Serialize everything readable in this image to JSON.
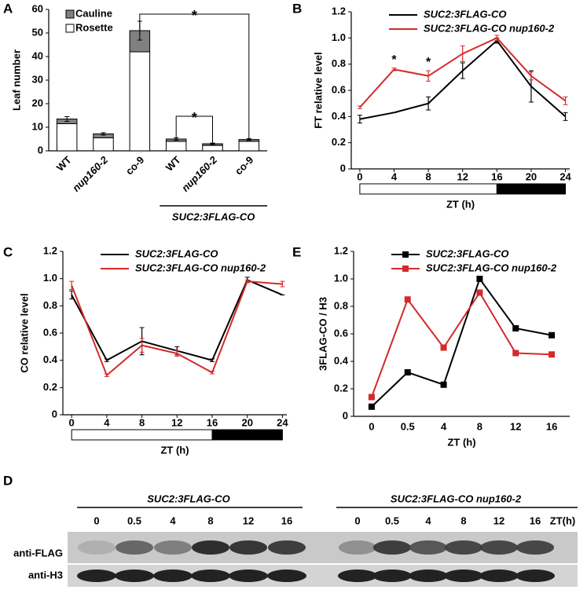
{
  "chart_data": [
    {
      "panel": "A",
      "type": "stacked_bar",
      "y_label": "Leaf number",
      "categories": [
        "WT",
        "nup160-2",
        "co-9",
        "WT",
        "nup160-2",
        "co-9"
      ],
      "series": [
        {
          "name": "Rosette",
          "color": "#ffffff",
          "values": [
            11.5,
            5.5,
            42,
            4,
            2.3,
            4
          ]
        },
        {
          "name": "Cauline",
          "color": "#808080",
          "values": [
            2,
            1.7,
            9,
            1,
            0.7,
            0.8
          ],
          "errors": [
            1,
            0.5,
            4,
            0.5,
            0.3,
            0.4
          ]
        }
      ],
      "ylim": [
        0,
        60
      ],
      "yticks": [
        0,
        10,
        20,
        30,
        40,
        50,
        60
      ],
      "group_label": "SUC2:3FLAG-CO",
      "annotations": [
        "*",
        "*"
      ]
    },
    {
      "panel": "B",
      "type": "line",
      "y_label": "FT relative level",
      "x_label": "ZT (h)",
      "x": [
        0,
        4,
        8,
        12,
        16,
        20,
        24
      ],
      "xlim": [
        -1,
        24.5
      ],
      "xticks": [
        0,
        4,
        8,
        12,
        16,
        20,
        24
      ],
      "light_period": [
        0,
        16
      ],
      "dark_period": [
        16,
        24
      ],
      "series": [
        {
          "name": "SUC2:3FLAG-CO",
          "color": "#000000",
          "values": [
            0.38,
            0.43,
            0.5,
            0.75,
            0.98,
            0.63,
            0.4
          ],
          "errors": [
            0.03,
            0,
            0.05,
            0.06,
            0.02,
            0.12,
            0.03
          ]
        },
        {
          "name": "SUC2:3FLAG-CO nup160-2",
          "color": "#d42a2a",
          "values": [
            0.47,
            0.76,
            0.71,
            0.88,
            1.0,
            0.71,
            0.52
          ],
          "errors": [
            0.01,
            0.01,
            0.04,
            0.06,
            0.02,
            0.03,
            0.03
          ]
        }
      ],
      "ylim": [
        0,
        1.2
      ],
      "yticks": [
        0,
        0.2,
        0.4,
        0.6,
        0.8,
        {
          "value": 1,
          "label": "1.0"
        },
        1.2
      ],
      "annotations": [
        "*",
        "*"
      ]
    },
    {
      "panel": "C",
      "type": "line",
      "y_label": "CO relative level",
      "x_label": "ZT (h)",
      "x": [
        0,
        4,
        8,
        12,
        16,
        20,
        24
      ],
      "xlim": [
        -1,
        24.5
      ],
      "xticks": [
        0,
        4,
        8,
        12,
        16,
        20,
        24
      ],
      "light_period": [
        0,
        16
      ],
      "dark_period": [
        16,
        24
      ],
      "series": [
        {
          "name": "SUC2:3FLAG-CO",
          "color": "#000000",
          "values": [
            0.88,
            0.4,
            0.54,
            0.47,
            0.4,
            0.99,
            0.88
          ],
          "errors": [
            0.03,
            0.01,
            0.1,
            0.03,
            0.01,
            0.02,
            0
          ]
        },
        {
          "name": "SUC2:3FLAG-CO nup160-2",
          "color": "#d42a2a",
          "values": [
            0.95,
            0.29,
            0.51,
            0.45,
            0.31,
            0.98,
            0.96
          ],
          "errors": [
            0.03,
            0.01,
            0.05,
            0.02,
            0.01,
            0.01,
            0.02
          ]
        }
      ],
      "ylim": [
        0,
        1.2
      ],
      "yticks": [
        0,
        0.2,
        0.4,
        0.6,
        0.8,
        {
          "value": 1,
          "label": "1.0"
        },
        1.2
      ]
    },
    {
      "panel": "E",
      "type": "line_category",
      "y_label": "3FLAG-CO / H3",
      "x_label": "ZT (h)",
      "categories": [
        "0",
        "0.5",
        "4",
        "8",
        "12",
        "16"
      ],
      "series": [
        {
          "name": "SUC2:3FLAG-CO",
          "color": "#000000",
          "values": [
            0.07,
            0.32,
            0.23,
            1.0,
            0.64,
            0.59
          ]
        },
        {
          "name": "SUC2:3FLAG-CO nup160-2",
          "color": "#d42a2a",
          "values": [
            0.14,
            0.85,
            0.5,
            0.9,
            0.46,
            0.45
          ]
        }
      ],
      "ylim": [
        0,
        1.2
      ],
      "yticks": [
        0,
        0.2,
        0.4,
        0.6,
        0.8,
        {
          "value": 1,
          "label": "1.0"
        },
        1.2
      ]
    }
  ],
  "blot": {
    "panel": "D",
    "group_left": "SUC2:3FLAG-CO",
    "group_right": "SUC2:3FLAG-CO nup160-2",
    "lanes_left": [
      0,
      0.5,
      4,
      8,
      12,
      16
    ],
    "lanes_right": [
      0,
      0.5,
      4,
      8,
      12,
      16
    ],
    "lane_unit": "ZT(h)",
    "row_1": "anti-FLAG",
    "row_2": "anti-H3"
  }
}
